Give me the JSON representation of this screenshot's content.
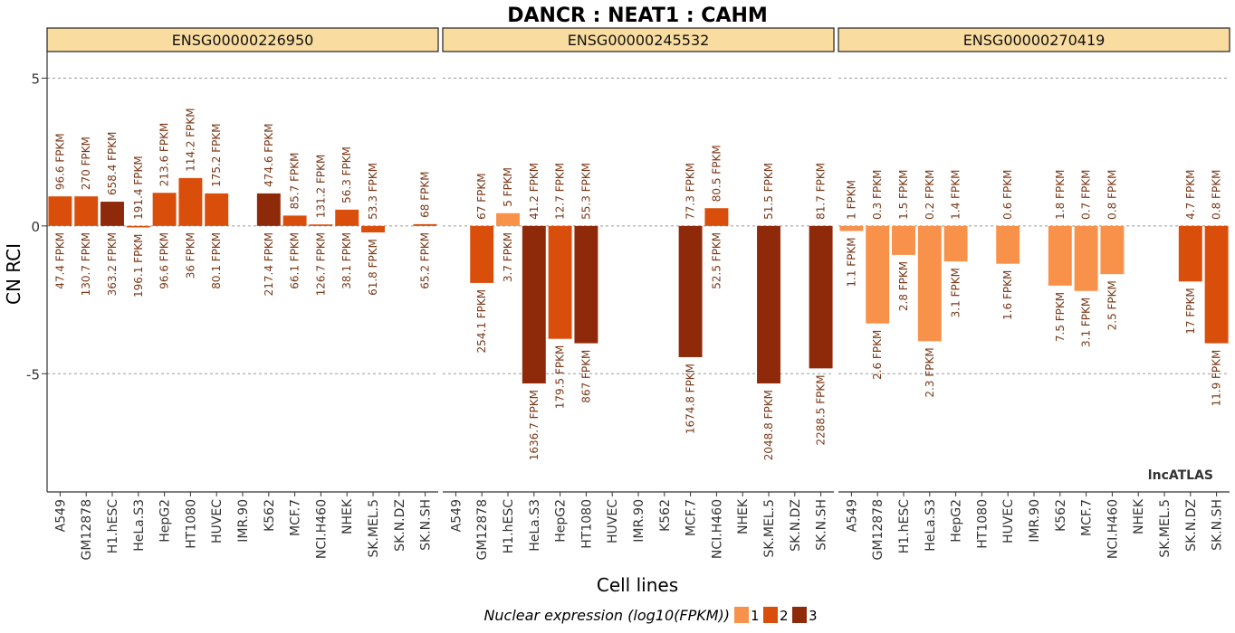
{
  "chart_data": {
    "type": "bar",
    "title": "DANCR : NEAT1 : CAHM",
    "xlabel": "Cell lines",
    "ylabel": "CN RCI",
    "yticks": [
      5,
      0,
      -5
    ],
    "ylim": [
      -9.0,
      5.9
    ],
    "watermark": "lncATLAS",
    "legend": {
      "title": "Nuclear expression (log10(FPKM))",
      "items": [
        {
          "label": "1",
          "color": "#F8914A"
        },
        {
          "label": "2",
          "color": "#DA4E0C"
        },
        {
          "label": "3",
          "color": "#8E2A0A"
        }
      ]
    },
    "categories": [
      "A549",
      "GM12878",
      "H1.hESC",
      "HeLa.S3",
      "HepG2",
      "HT1080",
      "HUVEC",
      "IMR.90",
      "K562",
      "MCF.7",
      "NCI.H460",
      "NHEK",
      "SK.MEL.5",
      "SK.N.DZ",
      "SK.N.SH"
    ],
    "panels": [
      {
        "name": "ENSG00000226950",
        "bars": [
          {
            "value": 1.0,
            "level": 2,
            "top": "96.6 FPKM",
            "bottom": "47.4 FPKM"
          },
          {
            "value": 1.0,
            "level": 2,
            "top": "270 FPKM",
            "bottom": "130.7 FPKM"
          },
          {
            "value": 0.82,
            "level": 3,
            "top": "658.4 FPKM",
            "bottom": "363.2 FPKM"
          },
          {
            "value": -0.05,
            "level": 2,
            "top": "191.4 FPKM",
            "bottom": "196.1 FPKM"
          },
          {
            "value": 1.12,
            "level": 2,
            "top": "213.6 FPKM",
            "bottom": "96.6 FPKM"
          },
          {
            "value": 1.62,
            "level": 2,
            "top": "114.2 FPKM",
            "bottom": "36 FPKM"
          },
          {
            "value": 1.1,
            "level": 2,
            "top": "175.2 FPKM",
            "bottom": "80.1 FPKM"
          },
          null,
          {
            "value": 1.1,
            "level": 3,
            "top": "474.6 FPKM",
            "bottom": "217.4 FPKM"
          },
          {
            "value": 0.35,
            "level": 2,
            "top": "85.7 FPKM",
            "bottom": "66.1 FPKM"
          },
          {
            "value": 0.05,
            "level": 2,
            "top": "131.2 FPKM",
            "bottom": "126.7 FPKM"
          },
          {
            "value": 0.55,
            "level": 2,
            "top": "56.3 FPKM",
            "bottom": "38.1 FPKM"
          },
          {
            "value": -0.22,
            "level": 2,
            "top": "53.3 FPKM",
            "bottom": "61.8 FPKM"
          },
          null,
          {
            "value": 0.06,
            "level": 2,
            "top": "68 FPKM",
            "bottom": "65.2 FPKM"
          }
        ]
      },
      {
        "name": "ENSG00000245532",
        "bars": [
          null,
          {
            "value": -1.93,
            "level": 2,
            "top": "67 FPKM",
            "bottom": "254.1 FPKM"
          },
          {
            "value": 0.43,
            "level": 1,
            "top": "5 FPKM",
            "bottom": "3.7 FPKM"
          },
          {
            "value": -5.33,
            "level": 3,
            "top": "41.2 FPKM",
            "bottom": "1636.7 FPKM"
          },
          {
            "value": -3.82,
            "level": 2,
            "top": "12.7 FPKM",
            "bottom": "179.5 FPKM"
          },
          {
            "value": -3.97,
            "level": 3,
            "top": "55.3 FPKM",
            "bottom": "867 FPKM"
          },
          null,
          null,
          null,
          {
            "value": -4.44,
            "level": 3,
            "top": "77.3 FPKM",
            "bottom": "1674.8 FPKM"
          },
          {
            "value": 0.6,
            "level": 2,
            "top": "80.5 FPKM",
            "bottom": "52.5 FPKM"
          },
          null,
          {
            "value": -5.33,
            "level": 3,
            "top": "51.5 FPKM",
            "bottom": "2048.8 FPKM"
          },
          null,
          {
            "value": -4.82,
            "level": 3,
            "top": "81.7 FPKM",
            "bottom": "2288.5 FPKM"
          }
        ]
      },
      {
        "name": "ENSG00000270419",
        "bars": [
          {
            "value": -0.17,
            "level": 1,
            "top": "1 FPKM",
            "bottom": "1.1 FPKM"
          },
          {
            "value": -3.3,
            "level": 1,
            "top": "0.3 FPKM",
            "bottom": "2.6 FPKM"
          },
          {
            "value": -0.98,
            "level": 1,
            "top": "1.5 FPKM",
            "bottom": "2.8 FPKM"
          },
          {
            "value": -3.9,
            "level": 1,
            "top": "0.2 FPKM",
            "bottom": "2.3 FPKM"
          },
          {
            "value": -1.2,
            "level": 1,
            "top": "1.4 FPKM",
            "bottom": "3.1 FPKM"
          },
          null,
          {
            "value": -1.28,
            "level": 1,
            "top": "0.6 FPKM",
            "bottom": "1.6 FPKM"
          },
          null,
          {
            "value": -2.02,
            "level": 1,
            "top": "1.8 FPKM",
            "bottom": "7.5 FPKM"
          },
          {
            "value": -2.2,
            "level": 1,
            "top": "0.7 FPKM",
            "bottom": "3.1 FPKM"
          },
          {
            "value": -1.63,
            "level": 1,
            "top": "0.8 FPKM",
            "bottom": "2.5 FPKM"
          },
          null,
          null,
          {
            "value": -1.88,
            "level": 2,
            "top": "4.7 FPKM",
            "bottom": "17 FPKM"
          },
          {
            "value": -3.97,
            "level": 2,
            "top": "0.8 FPKM",
            "bottom": "11.9 FPKM"
          }
        ]
      }
    ]
  }
}
